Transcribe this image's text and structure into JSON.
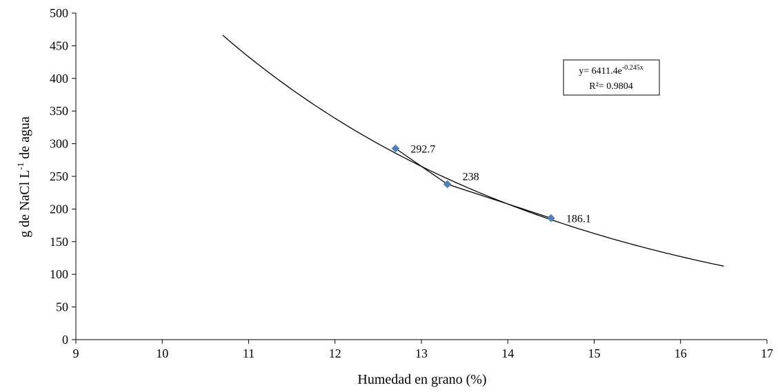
{
  "chart_data": {
    "type": "scatter",
    "xlabel": "Humedad en grano (%)",
    "ylabel": {
      "main": "g de NaCl L",
      "superscript": "-1",
      "suffix": " de agua"
    },
    "xlim": [
      9,
      17
    ],
    "ylim": [
      0,
      500
    ],
    "xticks": [
      9,
      10,
      11,
      12,
      13,
      14,
      15,
      16,
      17
    ],
    "yticks": [
      0,
      50,
      100,
      150,
      200,
      250,
      300,
      350,
      400,
      450,
      500
    ],
    "grid": false,
    "legend": "none",
    "marker_color": "#4f81bd",
    "points": [
      {
        "x": 12.7,
        "y": 292.7,
        "label": "292.7"
      },
      {
        "x": 13.3,
        "y": 238,
        "label": "238"
      },
      {
        "x": 14.5,
        "y": 186.1,
        "label": "186.1"
      }
    ],
    "trendline": {
      "type": "exponential",
      "a": 6411.4,
      "b": -0.245,
      "x_range": [
        10.7,
        16.5
      ],
      "equation_prefix": "y= 6411.4e",
      "equation_exponent": "-0.245x",
      "r2_text": "R²= 0.9804"
    }
  }
}
